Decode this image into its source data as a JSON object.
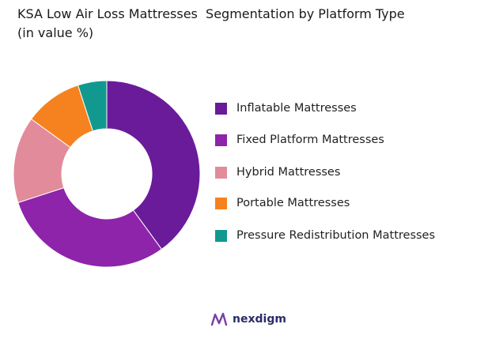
{
  "chart_data": {
    "type": "pie",
    "title": "KSA Low Air Loss Mattresses  Segmentation by Platform Type",
    "subtitle": "(in value %)",
    "categories": [
      "Inflatable Mattresses",
      "Fixed Platform Mattresses",
      "Hybrid Mattresses",
      "Portable Mattresses",
      "Pressure Redistribution Mattresses"
    ],
    "values": [
      40,
      30,
      15,
      10,
      5
    ],
    "colors": [
      "#6a1b9a",
      "#8e24aa",
      "#e28b9b",
      "#f5821f",
      "#12998f"
    ],
    "donut": true,
    "legend_position": "right"
  },
  "brand": {
    "name": "nexdigm",
    "logo_icon": "nexdigm-logo-icon"
  }
}
